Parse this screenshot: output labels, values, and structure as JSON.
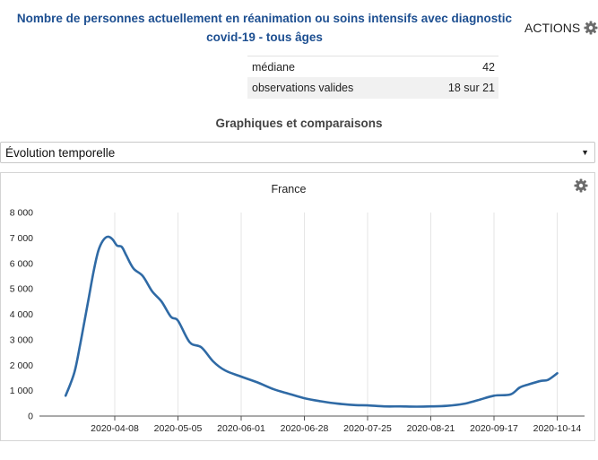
{
  "header": {
    "title_line1": "Nombre de personnes actuellement en réanimation ou soins intensifs avec diagnostic",
    "title_line2": "covid-19 - tous âges",
    "actions_label": "ACTIONS",
    "actions_icon": "gear-icon"
  },
  "stats": {
    "rows": [
      {
        "label": "médiane",
        "value": "42"
      },
      {
        "label": "observations valides",
        "value": "18 sur 21"
      }
    ]
  },
  "section": {
    "title": "Graphiques et comparaisons"
  },
  "view_select": {
    "value": "Évolution temporelle"
  },
  "chart_panel": {
    "settings_icon": "gear-icon"
  },
  "chart_data": {
    "type": "line",
    "title": "France",
    "xlabel": "",
    "ylabel": "",
    "ylim": [
      0,
      8000
    ],
    "y_ticks": [
      0,
      1000,
      2000,
      3000,
      4000,
      5000,
      6000,
      7000,
      8000
    ],
    "y_tick_labels": [
      "0",
      "1 000",
      "2 000",
      "3 000",
      "4 000",
      "5 000",
      "6 000",
      "7 000",
      "8 000"
    ],
    "x_tick_labels": [
      "2020-04-08",
      "2020-05-05",
      "2020-06-01",
      "2020-06-28",
      "2020-07-25",
      "2020-08-21",
      "2020-09-17",
      "2020-10-14"
    ],
    "grid": "vertical",
    "line_color": "#2f6aa5",
    "series": [
      {
        "name": "",
        "x": [
          "2020-03-18",
          "2020-03-20",
          "2020-03-22",
          "2020-03-24",
          "2020-03-26",
          "2020-03-28",
          "2020-03-30",
          "2020-04-01",
          "2020-04-03",
          "2020-04-05",
          "2020-04-07",
          "2020-04-09",
          "2020-04-11",
          "2020-04-13",
          "2020-04-16",
          "2020-04-20",
          "2020-04-24",
          "2020-04-28",
          "2020-05-02",
          "2020-05-05",
          "2020-05-10",
          "2020-05-15",
          "2020-05-20",
          "2020-05-25",
          "2020-06-01",
          "2020-06-08",
          "2020-06-15",
          "2020-06-22",
          "2020-06-28",
          "2020-07-05",
          "2020-07-12",
          "2020-07-20",
          "2020-07-25",
          "2020-08-01",
          "2020-08-08",
          "2020-08-15",
          "2020-08-21",
          "2020-08-28",
          "2020-09-04",
          "2020-09-10",
          "2020-09-17",
          "2020-09-24",
          "2020-09-28",
          "2020-10-02",
          "2020-10-07",
          "2020-10-10",
          "2020-10-14"
        ],
        "y": [
          800,
          1250,
          1800,
          2700,
          3700,
          4700,
          5700,
          6500,
          6900,
          7050,
          6950,
          6700,
          6650,
          6300,
          5800,
          5500,
          4900,
          4500,
          3900,
          3750,
          2900,
          2700,
          2150,
          1800,
          1550,
          1320,
          1050,
          860,
          700,
          580,
          490,
          430,
          420,
          380,
          380,
          370,
          380,
          400,
          480,
          620,
          800,
          850,
          1120,
          1250,
          1380,
          1420,
          1680
        ]
      }
    ]
  }
}
